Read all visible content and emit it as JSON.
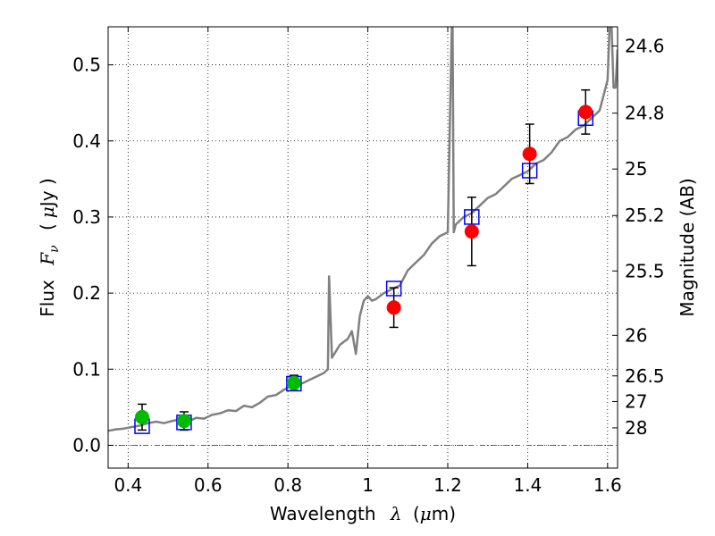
{
  "chart_data": {
    "type": "scatter",
    "xlabel_text": "Wavelength",
    "xlabel_symbol": "λ",
    "xlabel_unit_prefix": "(",
    "xlabel_unit_mu": "μ",
    "xlabel_unit_rest": "m)",
    "ylabel_text": "Flux",
    "ylabel_symbol": "F",
    "ylabel_symbol_sub": "ν",
    "ylabel_unit_prefix": "(",
    "ylabel_unit_mu": "μ",
    "ylabel_unit_rest": "Jy )",
    "y2label": "Magnitude (AB)",
    "xlim": [
      0.35,
      1.625
    ],
    "ylim": [
      -0.03,
      0.55
    ],
    "xticks": [
      0.4,
      0.6,
      0.8,
      1.0,
      1.2,
      1.4,
      1.6
    ],
    "xtick_labels": [
      "0.4",
      "0.6",
      "0.8",
      "1",
      "1.2",
      "1.4",
      "1.6"
    ],
    "yticks": [
      0.0,
      0.1,
      0.2,
      0.3,
      0.4,
      0.5
    ],
    "ytick_labels": [
      "0.0",
      "0.1",
      "0.2",
      "0.3",
      "0.4",
      "0.5"
    ],
    "mag_ticks": [
      24.6,
      24.8,
      25,
      25.2,
      25.5,
      26,
      26.5,
      27,
      28
    ],
    "mag_tick_labels": [
      "24.6",
      "24.8",
      "25",
      "25.2",
      "25.5",
      "26",
      "26.5",
      "27",
      "28"
    ],
    "grid": true,
    "colors": {
      "spectrum": "#808080",
      "green_points": "#00bb00",
      "red_points": "#ff0000",
      "model_squares": "#0000ff",
      "errorbars": "#000000",
      "zero_line": "#606060"
    },
    "series": [
      {
        "name": "green_photometry",
        "x": [
          0.435,
          0.54,
          0.815
        ],
        "y": [
          0.037,
          0.032,
          0.082
        ],
        "yerr": [
          0.017,
          0.012,
          0.01
        ]
      },
      {
        "name": "red_photometry",
        "x": [
          1.065,
          1.26,
          1.405,
          1.545
        ],
        "y": [
          0.181,
          0.281,
          0.383,
          0.438
        ],
        "yerr": [
          0.026,
          0.045,
          0.039,
          0.029
        ]
      },
      {
        "name": "model_synthetic_photometry",
        "x": [
          0.435,
          0.54,
          0.815,
          1.065,
          1.26,
          1.405,
          1.545
        ],
        "y": [
          0.025,
          0.03,
          0.081,
          0.206,
          0.3,
          0.361,
          0.43
        ]
      },
      {
        "name": "model_spectrum",
        "x": [
          0.35,
          0.37,
          0.39,
          0.41,
          0.43,
          0.45,
          0.47,
          0.49,
          0.51,
          0.53,
          0.55,
          0.57,
          0.59,
          0.61,
          0.63,
          0.65,
          0.67,
          0.69,
          0.71,
          0.73,
          0.75,
          0.77,
          0.79,
          0.81,
          0.83,
          0.85,
          0.87,
          0.89,
          0.9,
          0.903,
          0.91,
          0.93,
          0.95,
          0.96,
          0.97,
          0.98,
          0.99,
          1.0,
          1.01,
          1.02,
          1.04,
          1.06,
          1.08,
          1.1,
          1.12,
          1.14,
          1.16,
          1.18,
          1.2,
          1.21,
          1.212,
          1.215,
          1.22,
          1.24,
          1.26,
          1.28,
          1.3,
          1.32,
          1.34,
          1.36,
          1.38,
          1.4,
          1.42,
          1.44,
          1.46,
          1.48,
          1.5,
          1.52,
          1.54,
          1.56,
          1.58,
          1.6,
          1.605,
          1.61,
          1.615,
          1.62,
          1.625
        ],
        "y": [
          0.019,
          0.021,
          0.022,
          0.024,
          0.026,
          0.029,
          0.031,
          0.029,
          0.032,
          0.034,
          0.031,
          0.036,
          0.035,
          0.04,
          0.042,
          0.046,
          0.045,
          0.052,
          0.05,
          0.056,
          0.064,
          0.066,
          0.073,
          0.078,
          0.08,
          0.085,
          0.09,
          0.095,
          0.1,
          0.222,
          0.115,
          0.132,
          0.14,
          0.15,
          0.12,
          0.17,
          0.19,
          0.196,
          0.19,
          0.192,
          0.2,
          0.205,
          0.21,
          0.23,
          0.24,
          0.25,
          0.265,
          0.275,
          0.28,
          0.55,
          0.55,
          0.28,
          0.29,
          0.3,
          0.305,
          0.315,
          0.325,
          0.33,
          0.34,
          0.35,
          0.355,
          0.36,
          0.37,
          0.375,
          0.385,
          0.4,
          0.405,
          0.415,
          0.42,
          0.43,
          0.44,
          0.48,
          0.55,
          0.55,
          0.47,
          0.47,
          0.52
        ]
      }
    ]
  }
}
